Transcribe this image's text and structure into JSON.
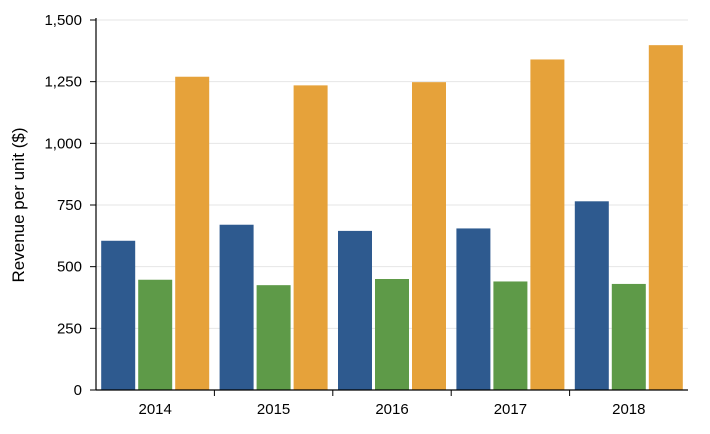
{
  "chart_data": {
    "type": "bar",
    "categories": [
      "2014",
      "2015",
      "2016",
      "2017",
      "2018"
    ],
    "series": [
      {
        "values": [
          605,
          670,
          645,
          655,
          765
        ],
        "color": "#2e5a8f"
      },
      {
        "values": [
          447,
          425,
          450,
          440,
          430
        ],
        "color": "#5e9a48"
      },
      {
        "values": [
          1270,
          1235,
          1248,
          1340,
          1398
        ],
        "color": "#e6a23a"
      }
    ],
    "title": "",
    "xlabel": "",
    "ylabel": "Revenue per unit ($)",
    "ylim": [
      0,
      1500
    ],
    "yticks": [
      0,
      250,
      500,
      750,
      1000,
      1250,
      1500
    ],
    "ytick_labels": [
      "0",
      "250",
      "500",
      "750",
      "1,000",
      "1,250",
      "1,500"
    ],
    "grid": true,
    "legend": "none"
  }
}
